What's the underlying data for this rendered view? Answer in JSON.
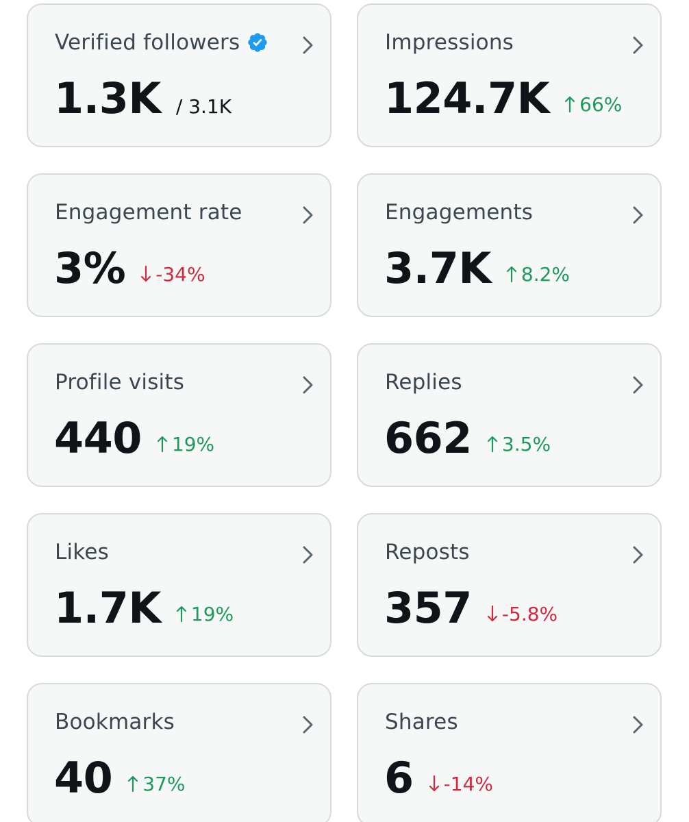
{
  "colors": {
    "card_bg": "#f6f8f8",
    "card_border": "#d3dae0",
    "title": "#3b4650",
    "value": "#0f1419",
    "up": "#1d9a5b",
    "down": "#d02a3d",
    "verified": "#1d9bf0"
  },
  "cards": [
    {
      "title": "Verified followers",
      "value": "1.3K",
      "sub": "/ 3.1K"
    },
    {
      "title": "Impressions",
      "value": "124.7K",
      "change": "66%",
      "direction": "up"
    },
    {
      "title": "Engagement rate",
      "value": "3%",
      "change": "-34%",
      "direction": "down"
    },
    {
      "title": "Engagements",
      "value": "3.7K",
      "change": "8.2%",
      "direction": "up"
    },
    {
      "title": "Profile visits",
      "value": "440",
      "change": "19%",
      "direction": "up"
    },
    {
      "title": "Replies",
      "value": "662",
      "change": "3.5%",
      "direction": "up"
    },
    {
      "title": "Likes",
      "value": "1.7K",
      "change": "19%",
      "direction": "up"
    },
    {
      "title": "Reposts",
      "value": "357",
      "change": "-5.8%",
      "direction": "down"
    },
    {
      "title": "Bookmarks",
      "value": "40",
      "change": "37%",
      "direction": "up"
    },
    {
      "title": "Shares",
      "value": "6",
      "change": "-14%",
      "direction": "down"
    }
  ]
}
